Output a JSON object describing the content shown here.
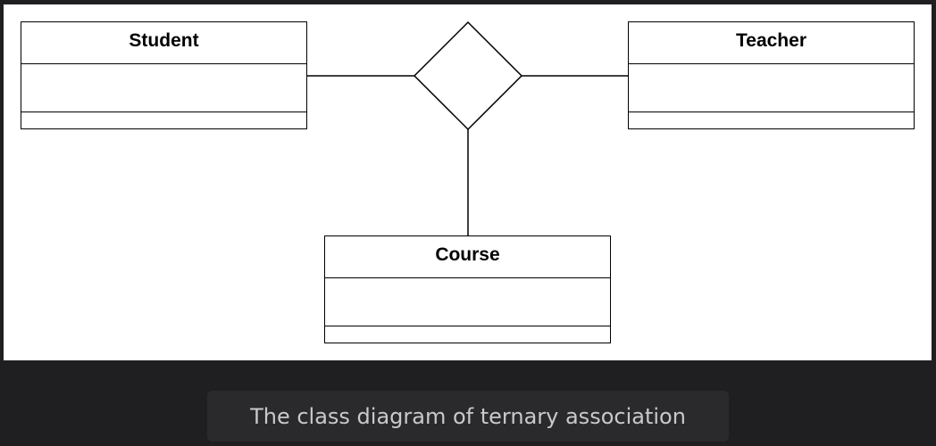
{
  "diagram": {
    "classes": {
      "student": {
        "name": "Student"
      },
      "teacher": {
        "name": "Teacher"
      },
      "course": {
        "name": "Course"
      }
    },
    "association": {
      "kind": "ternary"
    }
  },
  "caption": {
    "text": "The class diagram of ternary association"
  }
}
